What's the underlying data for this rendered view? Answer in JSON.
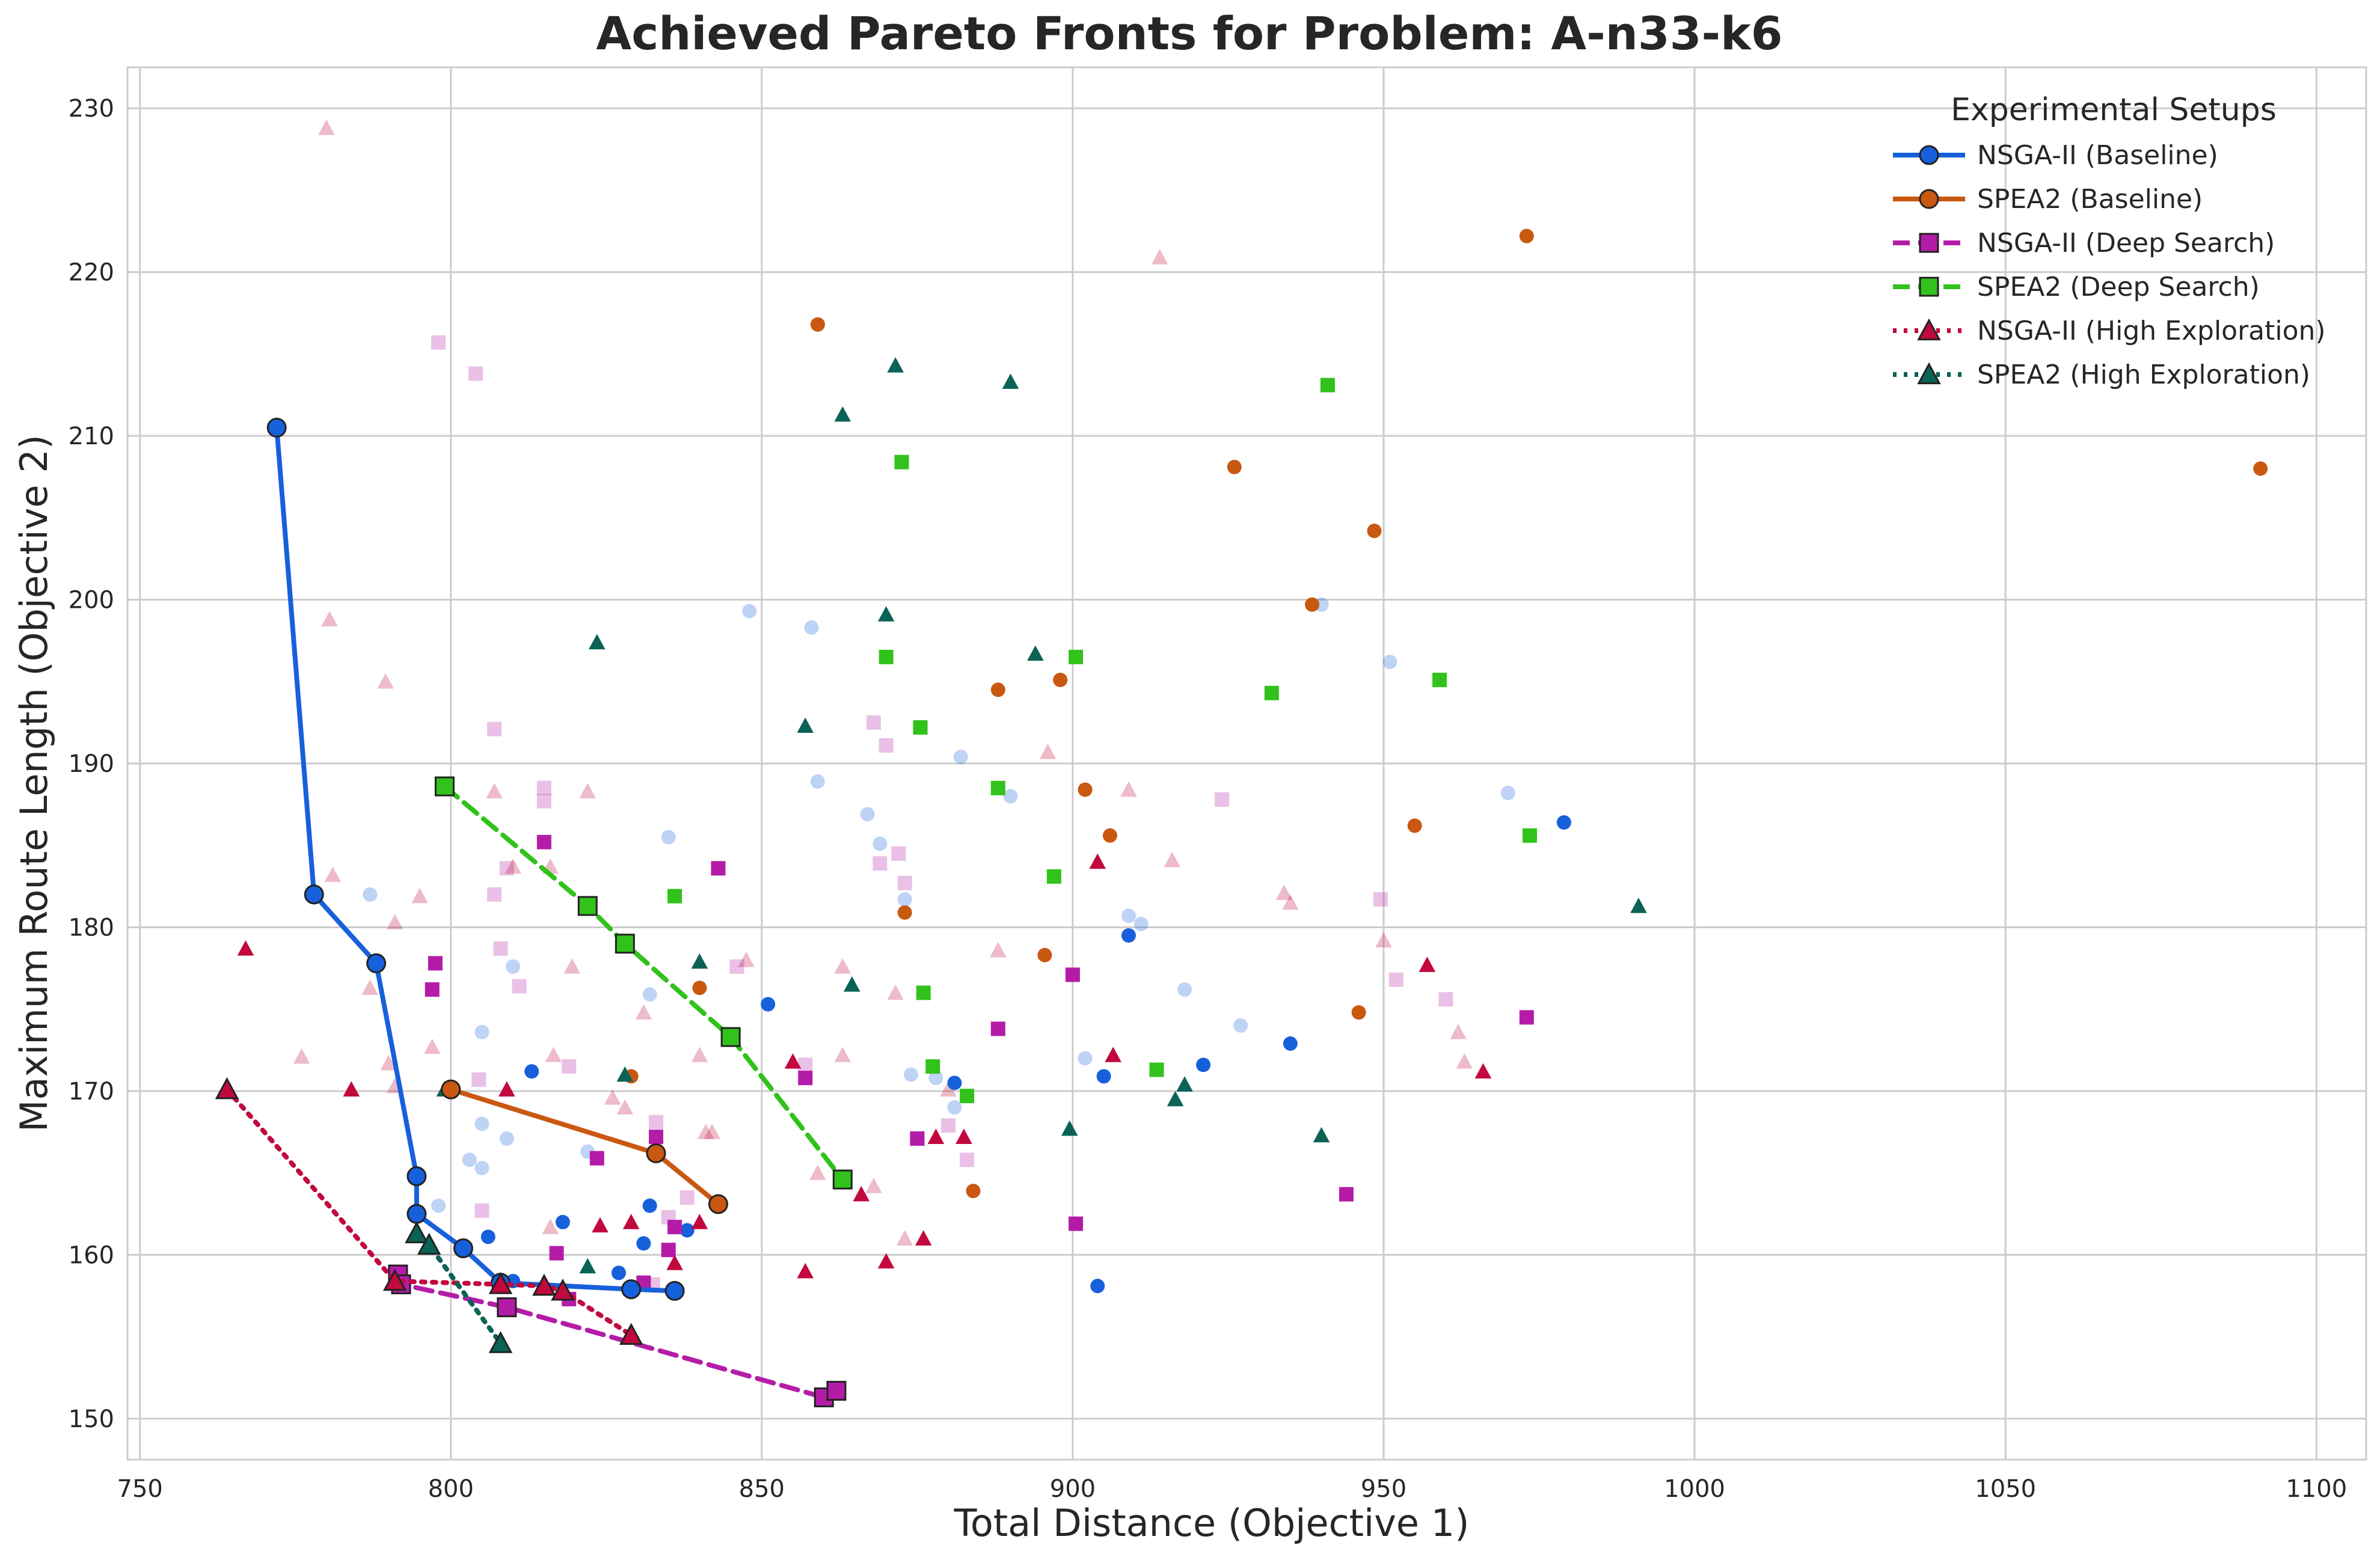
{
  "chart_data": {
    "type": "scatter",
    "title": "Achieved Pareto Fronts for Problem: A-n33-k6",
    "xlabel": "Total Distance (Objective 1)",
    "ylabel": "Maximum Route Length (Objective 2)",
    "xlim": [
      748,
      1108
    ],
    "ylim": [
      147.5,
      232.5
    ],
    "xticks": [
      750,
      800,
      850,
      900,
      950,
      1000,
      1050,
      1100
    ],
    "yticks": [
      150,
      160,
      170,
      180,
      190,
      200,
      210,
      220,
      230
    ],
    "grid": true,
    "legend": {
      "title": "Experimental Setups",
      "placement": "top-right"
    },
    "series": [
      {
        "name": "NSGA-II (Baseline)",
        "color": "#1760db",
        "marker": "circle",
        "line_style": "solid",
        "front": [
          [
            772,
            210.5
          ],
          [
            778,
            182
          ],
          [
            788,
            177.8
          ],
          [
            794.5,
            164.8
          ],
          [
            794.5,
            162.5
          ],
          [
            802,
            160.4
          ],
          [
            808,
            158.3
          ],
          [
            829,
            157.9
          ],
          [
            836,
            157.8
          ]
        ],
        "scatter_bold": [
          [
            904,
            158.1
          ],
          [
            851,
            175.3
          ],
          [
            935,
            172.9
          ],
          [
            921,
            171.6
          ],
          [
            905,
            170.9
          ],
          [
            909,
            179.5
          ],
          [
            979,
            186.4
          ],
          [
            813,
            171.2
          ],
          [
            818,
            162
          ],
          [
            832,
            163
          ],
          [
            831,
            160.7
          ],
          [
            838,
            161.5
          ],
          [
            827,
            158.9
          ],
          [
            806,
            161.1
          ],
          [
            810,
            158.4
          ],
          [
            881,
            170.5
          ]
        ],
        "scatter_faint": [
          [
            848,
            199.3
          ],
          [
            858,
            198.3
          ],
          [
            940,
            199.7
          ],
          [
            951,
            196.2
          ],
          [
            970,
            188.2
          ],
          [
            882,
            190.4
          ],
          [
            890,
            188
          ],
          [
            859,
            188.9
          ],
          [
            867,
            186.9
          ],
          [
            869,
            185.1
          ],
          [
            835,
            185.5
          ],
          [
            873,
            181.7
          ],
          [
            909,
            180.7
          ],
          [
            911,
            180.2
          ],
          [
            918,
            176.2
          ],
          [
            927,
            174
          ],
          [
            902,
            172
          ],
          [
            874,
            171
          ],
          [
            878,
            170.8
          ],
          [
            881,
            169
          ],
          [
            787,
            182
          ],
          [
            805,
            173.6
          ],
          [
            810,
            177.6
          ],
          [
            832,
            175.9
          ],
          [
            798,
            163
          ],
          [
            803,
            165.8
          ],
          [
            805,
            165.3
          ],
          [
            805,
            168
          ],
          [
            822,
            166.3
          ],
          [
            809,
            167.1
          ]
        ]
      },
      {
        "name": "SPEA2 (Baseline)",
        "color": "#c95811",
        "marker": "circle",
        "line_style": "solid",
        "front": [
          [
            800,
            170.1
          ],
          [
            833,
            166.2
          ],
          [
            843,
            163.1
          ]
        ],
        "scatter_bold": [
          [
            859,
            216.8
          ],
          [
            973,
            222.2
          ],
          [
            926,
            208.1
          ],
          [
            948.5,
            204.2
          ],
          [
            938.5,
            199.7
          ],
          [
            888,
            194.5
          ],
          [
            898,
            195.1
          ],
          [
            902,
            188.4
          ],
          [
            906,
            185.6
          ],
          [
            873,
            180.9
          ],
          [
            895.5,
            178.3
          ],
          [
            955,
            186.2
          ],
          [
            946,
            174.8
          ],
          [
            840,
            176.3
          ],
          [
            829,
            170.9
          ],
          [
            884,
            163.9
          ],
          [
            1091,
            208
          ]
        ],
        "scatter_faint": []
      },
      {
        "name": "NSGA-II (Deep Search)",
        "color": "#b41ca8",
        "marker": "square",
        "line_style": "dashed",
        "front": [
          [
            791.5,
            158.8
          ],
          [
            792,
            158.2
          ],
          [
            809,
            156.8
          ],
          [
            860,
            151.3
          ],
          [
            862,
            151.7
          ]
        ],
        "scatter_bold": [
          [
            815,
            185.2
          ],
          [
            843,
            183.6
          ],
          [
            900,
            177.1
          ],
          [
            888,
            173.8
          ],
          [
            973,
            174.5
          ],
          [
            857,
            170.8
          ],
          [
            875,
            167.1
          ],
          [
            833,
            167.2
          ],
          [
            823.5,
            165.9
          ],
          [
            817,
            160.1
          ],
          [
            836,
            161.7
          ],
          [
            835,
            160.3
          ],
          [
            831,
            158.3
          ],
          [
            819,
            157.3
          ],
          [
            900.5,
            161.9
          ],
          [
            944,
            163.7
          ],
          [
            797.5,
            177.8
          ],
          [
            797,
            176.2
          ]
        ],
        "scatter_faint": [
          [
            798,
            215.7
          ],
          [
            804,
            213.8
          ],
          [
            807,
            192.1
          ],
          [
            815,
            188.5
          ],
          [
            815,
            187.7
          ],
          [
            868,
            192.5
          ],
          [
            870,
            191.1
          ],
          [
            924,
            187.8
          ],
          [
            869,
            183.9
          ],
          [
            872,
            184.5
          ],
          [
            873,
            182.7
          ],
          [
            807,
            182
          ],
          [
            809,
            183.6
          ],
          [
            808,
            178.7
          ],
          [
            811,
            176.4
          ],
          [
            819,
            171.5
          ],
          [
            804.5,
            170.7
          ],
          [
            846,
            177.6
          ],
          [
            949.5,
            181.7
          ],
          [
            960,
            175.6
          ],
          [
            952,
            176.8
          ],
          [
            883,
            165.8
          ],
          [
            880,
            167.9
          ],
          [
            833,
            168.1
          ],
          [
            805,
            162.7
          ],
          [
            835,
            162.3
          ],
          [
            838,
            163.5
          ],
          [
            832.5,
            158.2
          ],
          [
            857,
            171.6
          ]
        ]
      },
      {
        "name": "SPEA2 (Deep Search)",
        "color": "#31c21b",
        "marker": "square",
        "line_style": "dashed",
        "front": [
          [
            799,
            188.6
          ],
          [
            822,
            181.3
          ],
          [
            828,
            179
          ],
          [
            845,
            173.3
          ],
          [
            863,
            164.6
          ]
        ],
        "scatter_bold": [
          [
            872.5,
            208.4
          ],
          [
            941,
            213.1
          ],
          [
            900.5,
            196.5
          ],
          [
            870,
            196.5
          ],
          [
            932,
            194.3
          ],
          [
            959,
            195.1
          ],
          [
            875.5,
            192.2
          ],
          [
            888,
            188.5
          ],
          [
            836,
            181.9
          ],
          [
            897,
            183.1
          ],
          [
            973.5,
            185.6
          ],
          [
            876,
            176
          ],
          [
            913.5,
            171.3
          ],
          [
            877.5,
            171.5
          ],
          [
            883,
            169.7
          ]
        ],
        "scatter_faint": []
      },
      {
        "name": "NSGA-II (High Exploration)",
        "color": "#c2093e",
        "marker": "triangle",
        "line_style": "dotted",
        "front": [
          [
            764,
            170.1
          ],
          [
            791,
            158.4
          ],
          [
            808,
            158.2
          ],
          [
            815,
            158.1
          ],
          [
            818,
            157.8
          ],
          [
            829,
            155.1
          ]
        ],
        "scatter_bold": [
          [
            767,
            178.7
          ],
          [
            784,
            170.1
          ],
          [
            809,
            170.1
          ],
          [
            904,
            184
          ],
          [
            957,
            177.7
          ],
          [
            966,
            171.2
          ],
          [
            906.5,
            172.2
          ],
          [
            878,
            167.2
          ],
          [
            882.5,
            167.2
          ],
          [
            855,
            171.8
          ],
          [
            824,
            161.8
          ],
          [
            829,
            162
          ],
          [
            836,
            159.5
          ],
          [
            840,
            162
          ],
          [
            857,
            159
          ],
          [
            866,
            163.7
          ],
          [
            870,
            159.6
          ],
          [
            876,
            161
          ]
        ],
        "scatter_faint": [
          [
            780,
            228.8
          ],
          [
            780.5,
            198.8
          ],
          [
            789.5,
            195
          ],
          [
            914,
            220.9
          ],
          [
            781,
            183.2
          ],
          [
            791,
            180.3
          ],
          [
            795,
            181.9
          ],
          [
            807,
            188.3
          ],
          [
            822,
            188.3
          ],
          [
            896,
            190.7
          ],
          [
            909,
            188.4
          ],
          [
            916,
            184.1
          ],
          [
            934,
            182.1
          ],
          [
            935,
            181.5
          ],
          [
            950,
            179.2
          ],
          [
            962,
            173.6
          ],
          [
            963,
            171.8
          ],
          [
            776,
            172.1
          ],
          [
            787,
            176.3
          ],
          [
            790,
            171.7
          ],
          [
            791,
            170.3
          ],
          [
            797,
            172.7
          ],
          [
            810,
            183.7
          ],
          [
            816,
            183.7
          ],
          [
            819.5,
            177.6
          ],
          [
            831,
            174.8
          ],
          [
            841,
            167.5
          ],
          [
            826,
            169.6
          ],
          [
            828,
            169
          ],
          [
            840,
            172.2
          ],
          [
            847.5,
            178
          ],
          [
            863,
            177.6
          ],
          [
            871.5,
            176
          ],
          [
            863,
            172.2
          ],
          [
            888,
            178.6
          ],
          [
            880,
            170.1
          ],
          [
            842,
            167.5
          ],
          [
            816,
            161.7
          ],
          [
            816.5,
            172.2
          ],
          [
            859,
            165
          ],
          [
            868,
            164.2
          ],
          [
            873,
            161
          ]
        ]
      },
      {
        "name": "SPEA2 (High Exploration)",
        "color": "#0b6256",
        "marker": "triangle",
        "line_style": "dotted",
        "front": [
          [
            794.5,
            161.3
          ],
          [
            796.5,
            160.6
          ],
          [
            808,
            154.6
          ]
        ],
        "scatter_bold": [
          [
            863,
            211.3
          ],
          [
            871.5,
            214.3
          ],
          [
            890,
            213.3
          ],
          [
            870,
            199.1
          ],
          [
            894,
            196.7
          ],
          [
            857,
            192.3
          ],
          [
            823.5,
            197.4
          ],
          [
            864.5,
            176.5
          ],
          [
            840,
            177.9
          ],
          [
            899.5,
            167.7
          ],
          [
            918,
            170.4
          ],
          [
            916.5,
            169.5
          ],
          [
            940,
            167.3
          ],
          [
            991,
            181.3
          ],
          [
            799,
            170.1
          ],
          [
            828,
            171
          ],
          [
            822,
            159.3
          ]
        ],
        "scatter_faint": []
      }
    ]
  }
}
